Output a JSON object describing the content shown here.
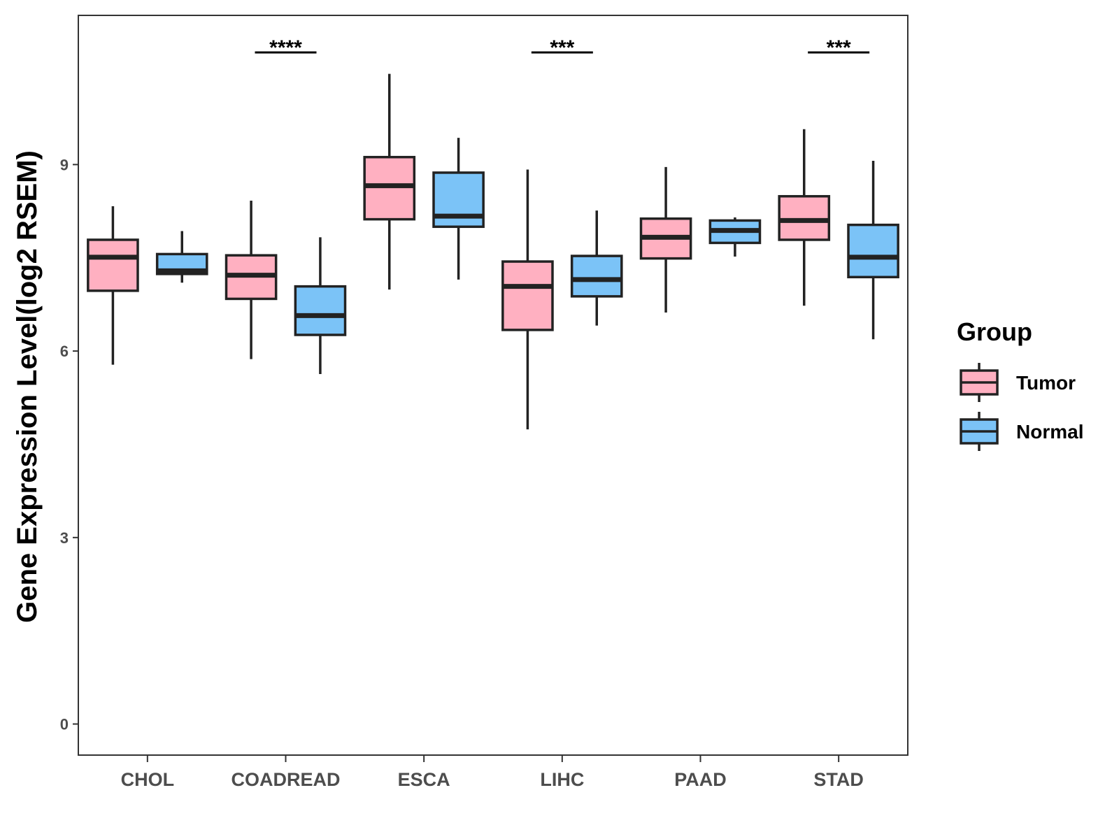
{
  "chart_data": {
    "type": "box",
    "title": "",
    "xlabel": "",
    "ylabel": "Gene Expression Level(log2 RSEM)",
    "ylim": [
      -0.5,
      11.4
    ],
    "yticks": [
      0,
      3,
      6,
      9
    ],
    "categories": [
      "CHOL",
      "COADREAD",
      "ESCA",
      "LIHC",
      "PAAD",
      "STAD"
    ],
    "legend": {
      "title": "Group",
      "position": "right",
      "entries": [
        {
          "name": "Tumor",
          "color": "#FFB0C1"
        },
        {
          "name": "Normal",
          "color": "#7BC3F7"
        }
      ]
    },
    "series": [
      {
        "name": "Tumor",
        "color": "#FFB0C1",
        "boxes": [
          {
            "category": "CHOL",
            "whisker_low": 5.78,
            "q1": 6.97,
            "median": 7.51,
            "q3": 7.79,
            "whisker_high": 8.33
          },
          {
            "category": "COADREAD",
            "whisker_low": 5.87,
            "q1": 6.84,
            "median": 7.22,
            "q3": 7.54,
            "whisker_high": 8.42
          },
          {
            "category": "ESCA",
            "whisker_low": 6.99,
            "q1": 8.12,
            "median": 8.66,
            "q3": 9.12,
            "whisker_high": 10.46
          },
          {
            "category": "LIHC",
            "whisker_low": 4.74,
            "q1": 6.34,
            "median": 7.04,
            "q3": 7.44,
            "whisker_high": 8.92
          },
          {
            "category": "PAAD",
            "whisker_low": 6.62,
            "q1": 7.49,
            "median": 7.83,
            "q3": 8.13,
            "whisker_high": 8.96
          },
          {
            "category": "STAD",
            "whisker_low": 6.73,
            "q1": 7.79,
            "median": 8.1,
            "q3": 8.49,
            "whisker_high": 9.57
          }
        ]
      },
      {
        "name": "Normal",
        "color": "#7BC3F7",
        "boxes": [
          {
            "category": "CHOL",
            "whisker_low": 7.1,
            "q1": 7.24,
            "median": 7.29,
            "q3": 7.56,
            "whisker_high": 7.93
          },
          {
            "category": "COADREAD",
            "whisker_low": 5.63,
            "q1": 6.26,
            "median": 6.57,
            "q3": 7.04,
            "whisker_high": 7.83
          },
          {
            "category": "ESCA",
            "whisker_low": 7.15,
            "q1": 8.0,
            "median": 8.17,
            "q3": 8.87,
            "whisker_high": 9.43
          },
          {
            "category": "LIHC",
            "whisker_low": 6.41,
            "q1": 6.88,
            "median": 7.15,
            "q3": 7.53,
            "whisker_high": 8.26
          },
          {
            "category": "PAAD",
            "whisker_low": 7.52,
            "q1": 7.74,
            "median": 7.94,
            "q3": 8.1,
            "whisker_high": 8.15
          },
          {
            "category": "STAD",
            "whisker_low": 6.19,
            "q1": 7.19,
            "median": 7.51,
            "q3": 8.03,
            "whisker_high": 9.06
          }
        ]
      }
    ],
    "annotations": [
      {
        "category": "COADREAD",
        "label": "****"
      },
      {
        "category": "LIHC",
        "label": "***"
      },
      {
        "category": "STAD",
        "label": "***"
      }
    ]
  }
}
